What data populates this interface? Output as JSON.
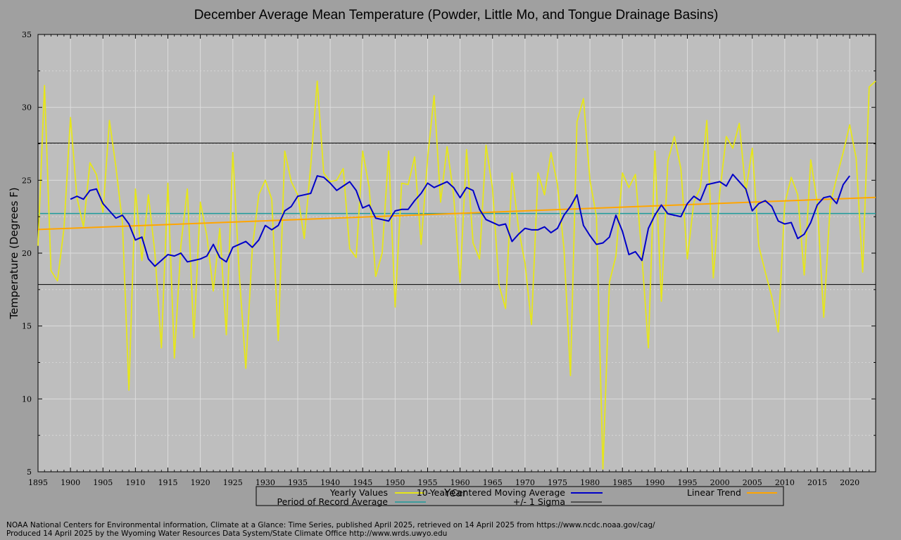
{
  "chart_data": {
    "type": "line",
    "title": "December Average Mean Temperature (Powder, Little Mo, and Tongue Drainage Basins)",
    "xlabel": "Year",
    "ylabel": "Temperature (Degrees F)",
    "xlim": [
      1895,
      2024
    ],
    "ylim": [
      5,
      35
    ],
    "x_ticks": [
      1895,
      1900,
      1905,
      1910,
      1915,
      1920,
      1925,
      1930,
      1935,
      1940,
      1945,
      1950,
      1955,
      1960,
      1965,
      1970,
      1975,
      1980,
      1985,
      1990,
      1995,
      2000,
      2005,
      2010,
      2015,
      2020
    ],
    "y_ticks": [
      5,
      10,
      15,
      20,
      25,
      30,
      35
    ],
    "grid": true,
    "legend_position": "bottom",
    "colors": {
      "plot_background": "#bebebe",
      "page_background": "#a0a0a0",
      "grid": "#dcdcdc",
      "yearly": "#e6e619",
      "moving_average": "#0000c8",
      "linear_trend": "#ffa500",
      "period_average": "#1e9b9b",
      "sigma": "#000000"
    },
    "series": [
      {
        "name": "Yearly Values",
        "start_year": 1895,
        "values": [
          20.5,
          31.5,
          18.8,
          18.1,
          21.7,
          29.3,
          23.8,
          21.8,
          26.2,
          25.4,
          22.8,
          29.1,
          25.9,
          22.1,
          10.6,
          24.4,
          19.5,
          24.0,
          20.0,
          13.5,
          24.8,
          12.8,
          20.5,
          24.4,
          14.2,
          23.5,
          21.2,
          17.4,
          21.7,
          14.4,
          26.9,
          18.5,
          12.1,
          20.3,
          24.0,
          25.0,
          23.7,
          14.0,
          27.0,
          24.9,
          24.0,
          21.0,
          26.0,
          31.8,
          25.5,
          24.9,
          25.0,
          25.8,
          20.3,
          19.7,
          27.0,
          24.5,
          18.4,
          20.0,
          27.0,
          16.3,
          24.8,
          24.7,
          26.6,
          20.6,
          26.5,
          30.8,
          23.5,
          27.3,
          24.0,
          18.0,
          27.1,
          20.7,
          19.6,
          27.4,
          24.4,
          17.8,
          16.2,
          25.5,
          21.7,
          19.3,
          15.1,
          25.5,
          24.0,
          26.9,
          24.7,
          20.3,
          11.6,
          29.0,
          30.6,
          25.0,
          22.5,
          5.2,
          18.0,
          19.8,
          25.5,
          24.5,
          25.4,
          19.8,
          13.5,
          27.0,
          16.7,
          26.3,
          28.0,
          25.8,
          19.6,
          23.5,
          24.5,
          29.1,
          18.3,
          24.2,
          28.0,
          27.2,
          28.9,
          24.2,
          27.2,
          20.5,
          18.7,
          17.0,
          14.6,
          23.4,
          25.2,
          24.0,
          18.5,
          26.4,
          23.5,
          15.6,
          23.3,
          25.2,
          26.9,
          28.8,
          26.5,
          18.7,
          31.4,
          31.8
        ]
      },
      {
        "name": "10-Year Centered Moving Average",
        "start_year": 1900,
        "values": [
          23.7,
          23.9,
          23.7,
          24.3,
          24.4,
          23.4,
          22.9,
          22.4,
          22.6,
          22.0,
          20.9,
          21.1,
          19.6,
          19.1,
          19.5,
          19.9,
          19.8,
          20.0,
          19.4,
          19.5,
          19.6,
          19.8,
          20.6,
          19.7,
          19.4,
          20.4,
          20.6,
          20.8,
          20.4,
          20.9,
          21.9,
          21.6,
          21.9,
          22.9,
          23.2,
          23.9,
          24.0,
          24.1,
          25.3,
          25.2,
          24.8,
          24.3,
          24.6,
          24.9,
          24.3,
          23.1,
          23.3,
          22.4,
          22.3,
          22.2,
          22.9,
          23.0,
          23.0,
          23.6,
          24.1,
          24.8,
          24.5,
          24.7,
          24.9,
          24.5,
          23.8,
          24.5,
          24.3,
          23.0,
          22.3,
          22.1,
          21.9,
          22.0,
          20.8,
          21.3,
          21.7,
          21.6,
          21.6,
          21.8,
          21.4,
          21.7,
          22.6,
          23.2,
          24.0,
          21.9,
          21.2,
          20.6,
          20.7,
          21.1,
          22.6,
          21.5,
          19.9,
          20.1,
          19.5,
          21.7,
          22.6,
          23.3,
          22.7,
          22.6,
          22.5,
          23.4,
          23.9,
          23.6,
          24.7,
          24.8,
          24.9,
          24.6,
          25.4,
          24.9,
          24.4,
          22.9,
          23.4,
          23.6,
          23.2,
          22.2,
          22.0,
          22.1,
          21.0,
          21.3,
          22.1,
          23.3,
          23.8,
          23.9,
          23.4,
          24.7,
          25.3
        ]
      },
      {
        "name": "Linear Trend",
        "x": [
          1895,
          2024
        ],
        "values": [
          21.62,
          23.82
        ]
      },
      {
        "name": "Period of Record Average",
        "value": 22.72
      },
      {
        "name": "+/- 1 Sigma",
        "values": [
          17.85,
          27.55
        ]
      }
    ]
  },
  "legend": {
    "yearly_label": "Yearly Values",
    "moving_average_label": "10-Year Centered Moving Average",
    "linear_trend_label": "Linear Trend",
    "period_average_label": "Period of Record Average",
    "sigma_label": "+/- 1 Sigma"
  },
  "footer": {
    "line1": "NOAA National Centers for Environmental information, Climate at a Glance: Time Series, published April 2025, retrieved on 14 April 2025 from https://www.ncdc.noaa.gov/cag/",
    "line2": "Produced 14 April 2025 by the Wyoming Water Resources Data System/State Climate Office http://www.wrds.uwyo.edu"
  }
}
